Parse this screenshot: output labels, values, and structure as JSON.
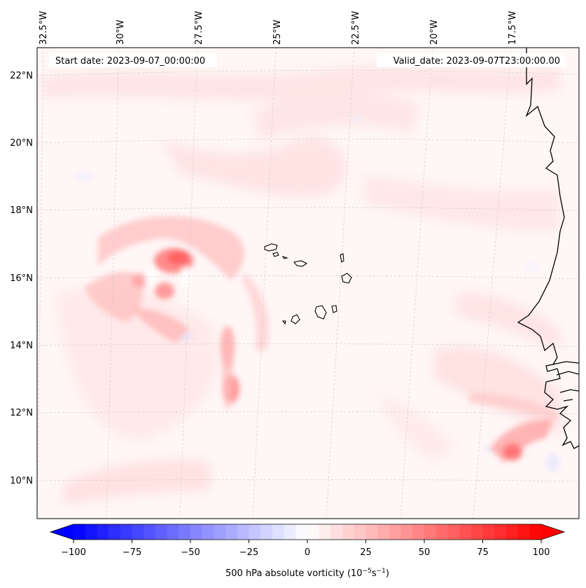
{
  "map": {
    "start_label": "Start date: 2023-09-07_00:00:00",
    "valid_label": "Valid_date: 2023-09-07T23:00:00.00",
    "lon_labels": [
      "32.5°W",
      "30°W",
      "27.5°W",
      "25°W",
      "22.5°W",
      "20°W",
      "17.5°W"
    ],
    "lat_labels": [
      "22°N",
      "20°N",
      "18°N",
      "16°N",
      "14°N",
      "12°N",
      "10°N"
    ],
    "coastline_color": "#000000",
    "gridline_color": "#c8c8c8"
  },
  "colorbar": {
    "ticks": [
      "−100",
      "−75",
      "−50",
      "−25",
      "0",
      "25",
      "50",
      "75",
      "100"
    ],
    "label_text": "500 hPa absolute vorticity (10",
    "label_exp1": "−5",
    "label_mid": "s",
    "label_exp2": "−1",
    "label_end": ")",
    "min": -100,
    "max": 100,
    "levels": 40,
    "neg_color": "#0000ff",
    "pos_color": "#ff0000"
  }
}
